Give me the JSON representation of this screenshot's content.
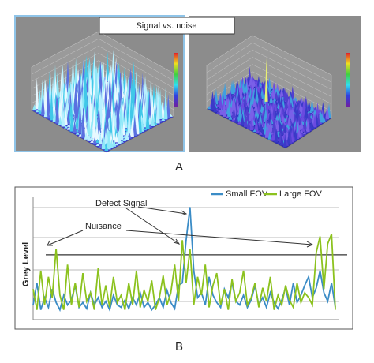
{
  "figure_a": {
    "title": "Signal vs. noise",
    "panel_label": "A"
  },
  "chart_data": {
    "type": "line",
    "ylabel": "Grey Level",
    "panel_label": "B",
    "annotations": [
      "Defect Signal",
      "Nuisance"
    ],
    "ylim": [
      0,
      100
    ],
    "threshold": 53,
    "series": [
      {
        "name": "Small FOV",
        "color": "#3b8cc6",
        "values": [
          12,
          30,
          8,
          18,
          10,
          25,
          14,
          8,
          20,
          12,
          16,
          28,
          10,
          14,
          9,
          22,
          12,
          18,
          10,
          15,
          8,
          20,
          12,
          10,
          16,
          9,
          18,
          12,
          22,
          10,
          14,
          8,
          12,
          18,
          10,
          24,
          14,
          9,
          28,
          30,
          65,
          92,
          40,
          18,
          22,
          12,
          35,
          20,
          14,
          10,
          25,
          18,
          30,
          15,
          12,
          20,
          10,
          16,
          28,
          12,
          18,
          10,
          22,
          14,
          9,
          16,
          26,
          12,
          30,
          14,
          20,
          28,
          35,
          18,
          26,
          40,
          22,
          15,
          30,
          10
        ]
      },
      {
        "name": "Large FOV",
        "color": "#8cc21e",
        "values": [
          25,
          8,
          40,
          12,
          35,
          18,
          58,
          20,
          8,
          45,
          12,
          30,
          10,
          38,
          15,
          22,
          8,
          42,
          12,
          28,
          10,
          35,
          14,
          20,
          8,
          30,
          12,
          40,
          10,
          24,
          15,
          32,
          8,
          18,
          36,
          12,
          22,
          45,
          15,
          65,
          30,
          58,
          12,
          35,
          20,
          45,
          10,
          28,
          38,
          12,
          25,
          8,
          33,
          15,
          22,
          40,
          12,
          18,
          30,
          10,
          26,
          15,
          35,
          8,
          20,
          12,
          28,
          16,
          10,
          30,
          14,
          22,
          18,
          12,
          55,
          68,
          25,
          62,
          70,
          8
        ]
      }
    ]
  }
}
